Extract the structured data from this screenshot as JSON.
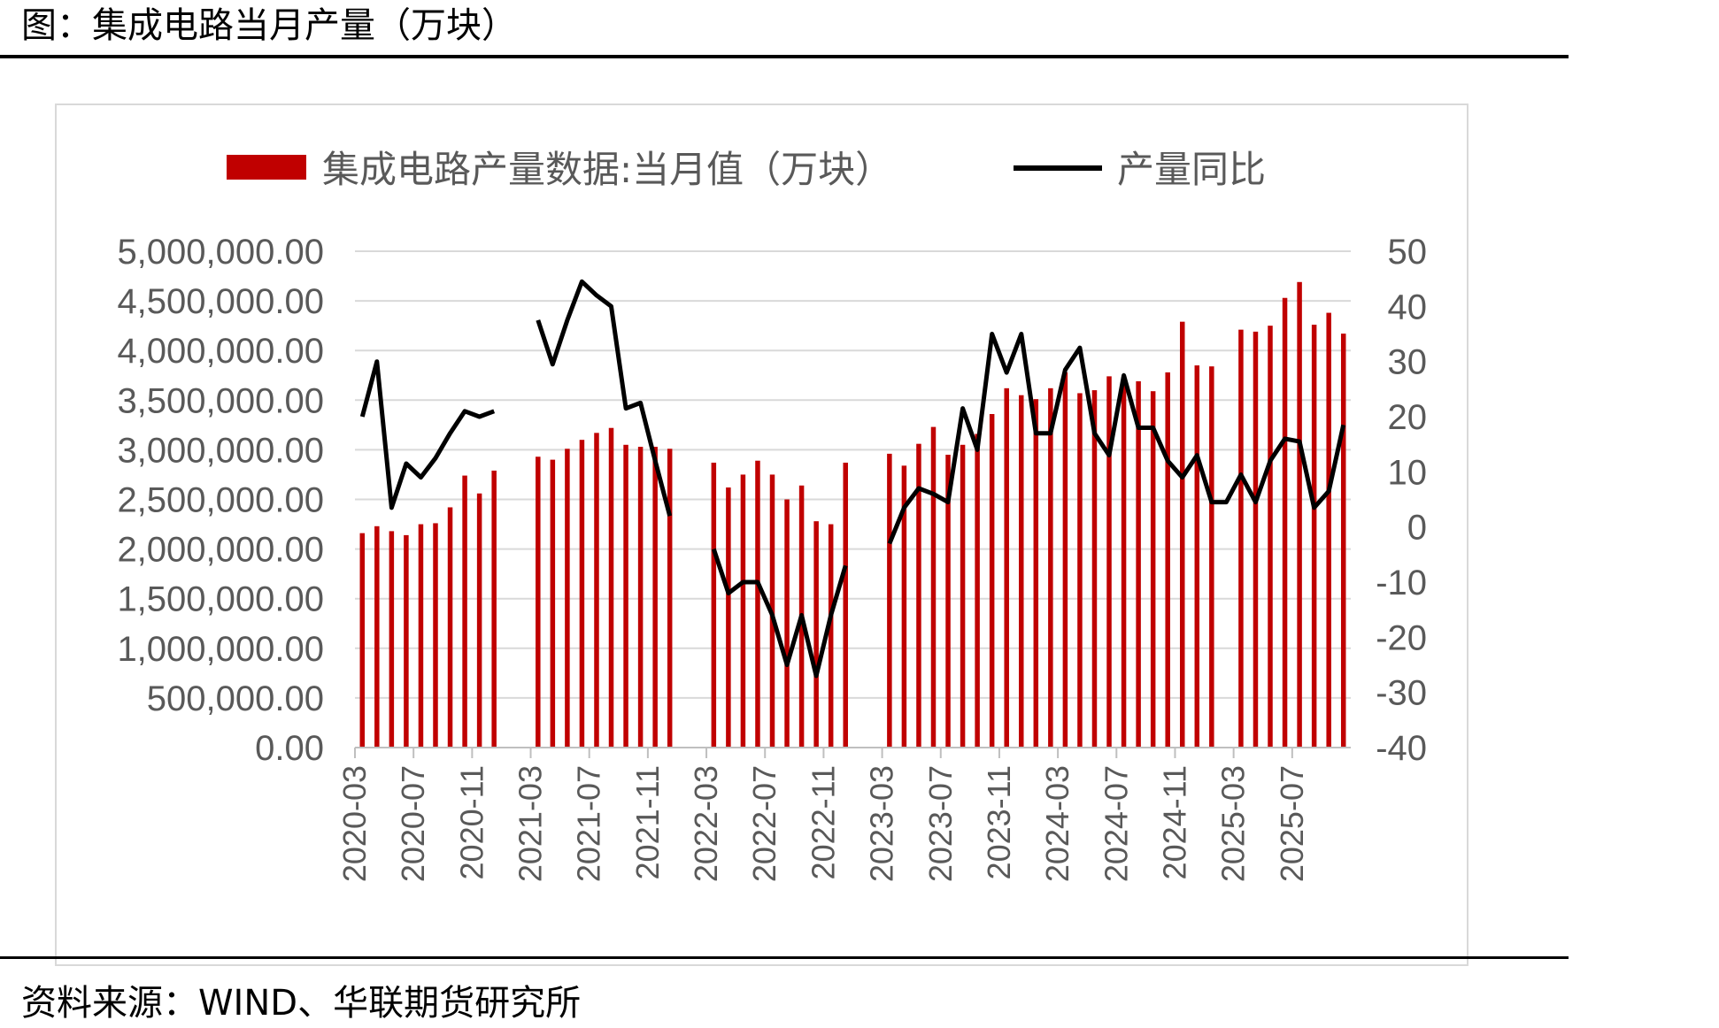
{
  "page": {
    "title": "图：集成电路当月产量（万块）",
    "source": "资料来源：WIND、华联期货研究所"
  },
  "chart_data": {
    "type": "bar+line",
    "title": "",
    "legend_position": "top",
    "grid": "horizontal",
    "colors": {
      "bar": "#C00000",
      "line": "#000000",
      "grid": "#d9d9d9",
      "axis_text": "#595959"
    },
    "legend": {
      "bar_label": "集成电路产量数据:当月值（万块）",
      "line_label": "产量同比"
    },
    "y_left": {
      "min": 0,
      "max": 5000000,
      "ticks": [
        "5,000,000.00",
        "4,500,000.00",
        "4,000,000.00",
        "3,500,000.00",
        "3,000,000.00",
        "2,500,000.00",
        "2,000,000.00",
        "1,500,000.00",
        "1,000,000.00",
        "500,000.00",
        "0.00"
      ]
    },
    "y_right": {
      "min": -40,
      "max": 50,
      "ticks": [
        "50",
        "40",
        "30",
        "20",
        "10",
        "0",
        "-10",
        "-20",
        "-30",
        "-40"
      ]
    },
    "x_tick_labels": [
      "2020-03",
      "2020-07",
      "2020-11",
      "2021-03",
      "2021-07",
      "2021-11",
      "2022-03",
      "2022-07",
      "2022-11",
      "2023-03",
      "2023-07",
      "2023-11",
      "2024-03",
      "2024-07",
      "2024-11",
      "2025-03",
      "2025-07"
    ],
    "months": [
      "2020-03",
      "2020-04",
      "2020-05",
      "2020-06",
      "2020-07",
      "2020-08",
      "2020-09",
      "2020-10",
      "2020-11",
      "2020-12",
      "2021-01",
      "2021-02",
      "2021-03",
      "2021-04",
      "2021-05",
      "2021-06",
      "2021-07",
      "2021-08",
      "2021-09",
      "2021-10",
      "2021-11",
      "2021-12",
      "2022-01",
      "2022-02",
      "2022-03",
      "2022-04",
      "2022-05",
      "2022-06",
      "2022-07",
      "2022-08",
      "2022-09",
      "2022-10",
      "2022-11",
      "2022-12",
      "2023-01",
      "2023-02",
      "2023-03",
      "2023-04",
      "2023-05",
      "2023-06",
      "2023-07",
      "2023-08",
      "2023-09",
      "2023-10",
      "2023-11",
      "2023-12",
      "2024-01",
      "2024-02",
      "2024-03",
      "2024-04",
      "2024-05",
      "2024-06",
      "2024-07",
      "2024-08",
      "2024-09",
      "2024-10",
      "2024-11",
      "2024-12",
      "2025-01",
      "2025-02",
      "2025-03",
      "2025-04",
      "2025-05",
      "2025-06",
      "2025-07",
      "2025-08",
      "2025-09",
      "2025-10"
    ],
    "series": [
      {
        "name": "集成电路产量数据:当月值（万块）",
        "type": "bar",
        "axis": "left",
        "values": [
          2160000,
          2230000,
          2180000,
          2140000,
          2250000,
          2260000,
          2420000,
          2740000,
          2560000,
          2790000,
          null,
          null,
          2930000,
          2900000,
          3010000,
          3100000,
          3170000,
          3220000,
          3050000,
          3030000,
          3030000,
          3010000,
          null,
          null,
          2870000,
          2620000,
          2750000,
          2890000,
          2750000,
          2500000,
          2640000,
          2280000,
          2250000,
          2870000,
          null,
          null,
          2960000,
          2840000,
          3060000,
          3230000,
          2950000,
          3050000,
          3160000,
          3360000,
          3620000,
          3550000,
          3510000,
          3620000,
          3780000,
          3570000,
          3600000,
          3740000,
          3730000,
          3690000,
          3590000,
          3780000,
          4290000,
          3850000,
          3840000,
          null,
          4210000,
          4190000,
          4250000,
          4530000,
          4690000,
          4260000,
          4380000,
          4170000
        ]
      },
      {
        "name": "产量同比",
        "type": "line",
        "axis": "right",
        "values": [
          20,
          30,
          3.5,
          11.5,
          9,
          12.5,
          17,
          21,
          20,
          21,
          null,
          null,
          37.5,
          29.5,
          37.5,
          44.5,
          42,
          40,
          21.5,
          22.5,
          12,
          2,
          null,
          null,
          -4,
          -12,
          -10,
          -10,
          -16,
          -25,
          -16,
          -27,
          -16,
          -7,
          null,
          null,
          -3,
          3.5,
          7,
          6,
          4.5,
          21.5,
          14,
          35,
          28,
          35,
          17,
          17,
          28.5,
          32.5,
          17,
          13,
          27.5,
          18,
          18,
          12,
          9,
          13,
          4.5,
          4.5,
          9.5,
          4.5,
          12,
          16,
          15.5,
          3.5,
          6.5,
          18.5
        ]
      }
    ]
  }
}
